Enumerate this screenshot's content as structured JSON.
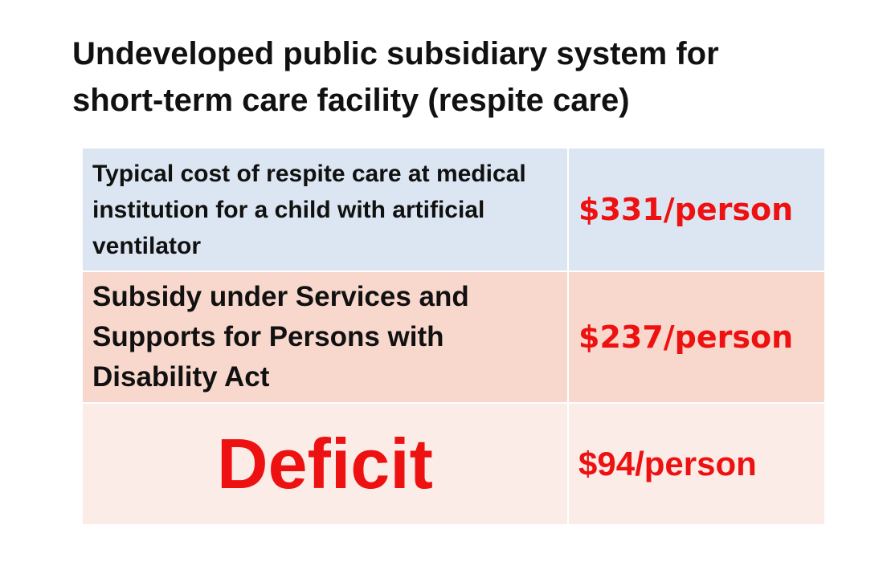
{
  "title": {
    "line1": "Undeveloped public subsidiary system for",
    "line2": "short-term care facility (respite care)"
  },
  "rows": [
    {
      "label": "Typical cost of respite care at medical institution for a child with artificial ventilator",
      "value": "$331/person",
      "background": "#dce6f2"
    },
    {
      "label": "Subsidy under Services and Supports for Persons with Disability Act",
      "value": "$237/person",
      "background": "#f8d7cc"
    },
    {
      "label": "Deficit",
      "value": "$94/person",
      "background": "#fbece7"
    }
  ],
  "colors": {
    "accent_red": "#ee1111",
    "text": "#111111"
  }
}
